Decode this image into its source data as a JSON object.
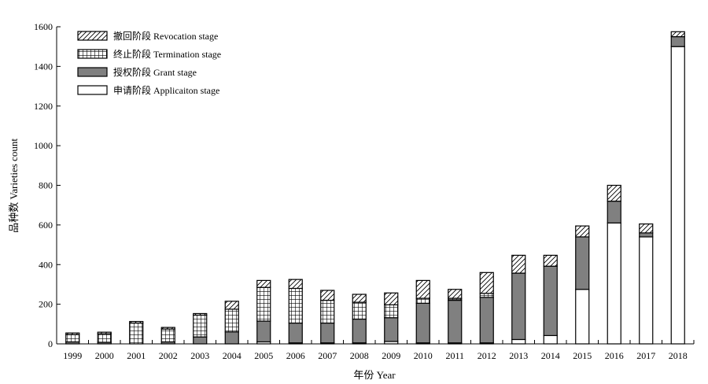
{
  "chart_data": {
    "type": "bar",
    "stacked": true,
    "xlabel": "年份 Year",
    "ylabel": "品种数 Varieties count",
    "ylim": [
      0,
      1600
    ],
    "yticks": [
      0,
      200,
      400,
      600,
      800,
      1000,
      1200,
      1400,
      1600
    ],
    "legend_position": "top-left",
    "categories": [
      "1999",
      "2000",
      "2001",
      "2002",
      "2003",
      "2004",
      "2005",
      "2006",
      "2007",
      "2008",
      "2009",
      "2010",
      "2011",
      "2012",
      "2013",
      "2014",
      "2015",
      "2016",
      "2017",
      "2018"
    ],
    "series": [
      {
        "name": "申请阶段 Applicaiton stage",
        "pattern": "solid-white",
        "color": "#ffffff",
        "values": [
          0,
          0,
          0,
          0,
          0,
          0,
          10,
          5,
          5,
          5,
          12,
          5,
          5,
          5,
          22,
          42,
          275,
          610,
          540,
          1500
        ]
      },
      {
        "name": "授权阶段 Grant stage",
        "pattern": "solid-gray",
        "color": "#808080",
        "values": [
          10,
          8,
          0,
          10,
          35,
          60,
          105,
          100,
          100,
          120,
          120,
          200,
          215,
          230,
          335,
          350,
          265,
          110,
          20,
          50
        ]
      },
      {
        "name": "终止阶段 Termination stage",
        "pattern": "grid",
        "color": "#000000",
        "values": [
          37,
          43,
          105,
          65,
          110,
          115,
          170,
          175,
          115,
          85,
          65,
          25,
          10,
          20,
          0,
          0,
          0,
          0,
          0,
          0
        ]
      },
      {
        "name": "撤回阶段 Revocation stage",
        "pattern": "hatch",
        "color": "#000000",
        "values": [
          8,
          8,
          8,
          8,
          8,
          40,
          35,
          45,
          50,
          40,
          60,
          90,
          45,
          105,
          90,
          55,
          55,
          80,
          45,
          25
        ]
      }
    ]
  }
}
